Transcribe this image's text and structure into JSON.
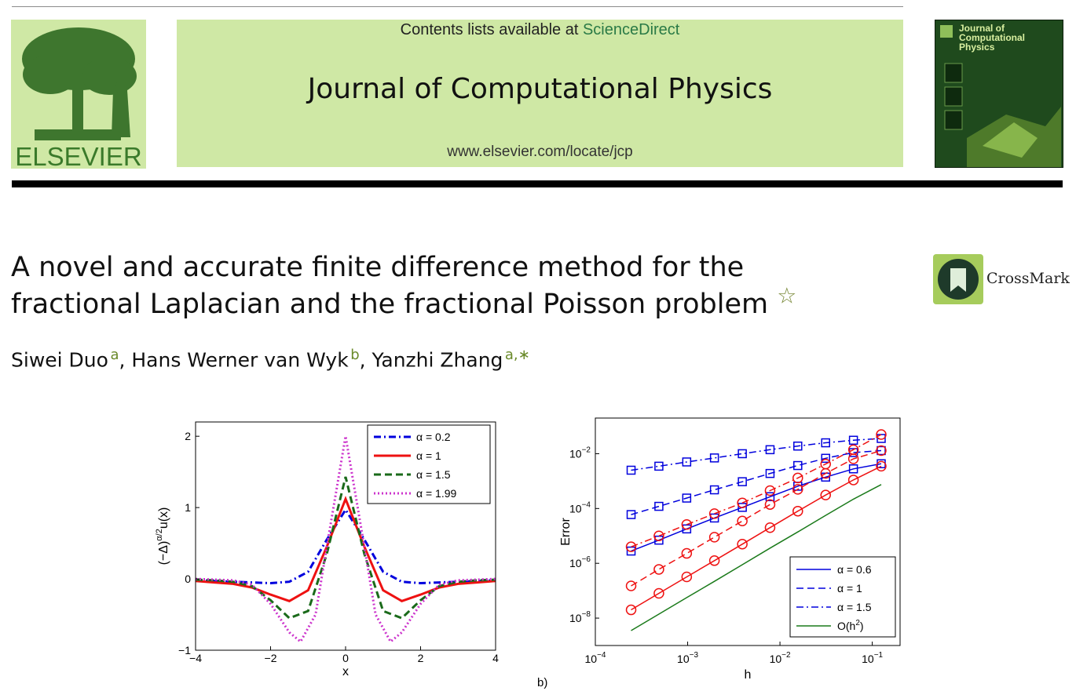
{
  "header": {
    "contents_prefix": "Contents lists available at ",
    "contents_link": "ScienceDirect",
    "journal_name": "Journal of Computational Physics",
    "journal_url": "www.elsevier.com/locate/jcp",
    "publisher_logo": "ELSEVIER",
    "cover_title": "Journal of Computational Physics",
    "colors": {
      "banner": "#cfe8a5",
      "link": "#2a7a46",
      "cover": "#1f4a1d"
    }
  },
  "article": {
    "title_line1": "A novel and accurate finite difference method for the",
    "title_line2": "fractional Laplacian and the fractional Poisson problem",
    "title_mark": "☆",
    "crossmark_label": "CrossMark",
    "authors": [
      {
        "name": "Siwei Duo",
        "aff": "a"
      },
      {
        "name": "Hans Werner van Wyk",
        "aff": "b"
      },
      {
        "name": "Yanzhi Zhang",
        "aff": "a,∗"
      }
    ]
  },
  "chart_data": [
    {
      "type": "line",
      "xlabel": "x",
      "ylabel": "(−Δ)^{α/2}u(x)",
      "xlim": [
        -4,
        4
      ],
      "ylim": [
        -1,
        2.2
      ],
      "xticks": [
        "−4",
        "−2",
        "0",
        "2",
        "4"
      ],
      "yticks": [
        "−1",
        "0",
        "1",
        "2"
      ],
      "legend_position": "top-right",
      "series": [
        {
          "name": "α = 0.2",
          "color": "#0000dd",
          "dash": "dashdot",
          "x": [
            -4,
            -3.5,
            -3,
            -2.5,
            -2,
            -1.5,
            -1,
            -0.5,
            0,
            0.5,
            1,
            1.5,
            2,
            2.5,
            3,
            3.5,
            4
          ],
          "y": [
            -0.02,
            -0.03,
            -0.04,
            -0.05,
            -0.06,
            -0.04,
            0.1,
            0.55,
            0.97,
            0.55,
            0.1,
            -0.04,
            -0.06,
            -0.05,
            -0.04,
            -0.03,
            -0.02
          ]
        },
        {
          "name": "α = 1",
          "color": "#ee1111",
          "dash": "solid",
          "x": [
            -4,
            -3.5,
            -3,
            -2.5,
            -2,
            -1.5,
            -1,
            -0.5,
            0,
            0.5,
            1,
            1.5,
            2,
            2.5,
            3,
            3.5,
            4
          ],
          "y": [
            -0.03,
            -0.05,
            -0.07,
            -0.12,
            -0.22,
            -0.31,
            -0.16,
            0.45,
            1.12,
            0.45,
            -0.16,
            -0.31,
            -0.22,
            -0.12,
            -0.07,
            -0.05,
            -0.03
          ]
        },
        {
          "name": "α = 1.5",
          "color": "#1a6a1a",
          "dash": "dashed",
          "x": [
            -4,
            -3.5,
            -3,
            -2.5,
            -2,
            -1.5,
            -1,
            -0.5,
            0,
            0.5,
            1,
            1.5,
            2,
            2.5,
            3,
            3.5,
            4
          ],
          "y": [
            -0.01,
            -0.02,
            -0.04,
            -0.1,
            -0.3,
            -0.55,
            -0.45,
            0.35,
            1.43,
            0.35,
            -0.45,
            -0.55,
            -0.3,
            -0.1,
            -0.04,
            -0.02,
            -0.01
          ]
        },
        {
          "name": "α = 1.99",
          "color": "#cc33cc",
          "dash": "dotted",
          "x": [
            -4,
            -3.5,
            -3,
            -2.5,
            -2,
            -1.5,
            -1.2,
            -0.8,
            -0.5,
            0,
            0.5,
            0.8,
            1.2,
            1.5,
            2,
            2.5,
            3,
            3.5,
            4
          ],
          "y": [
            0,
            -0.01,
            -0.02,
            -0.08,
            -0.35,
            -0.75,
            -0.88,
            -0.5,
            0.45,
            2.0,
            0.45,
            -0.5,
            -0.88,
            -0.75,
            -0.35,
            -0.08,
            -0.02,
            -0.01,
            0
          ]
        }
      ]
    },
    {
      "type": "line",
      "xlabel": "h",
      "ylabel": "Error",
      "xscale": "log",
      "yscale": "log",
      "xlim": [
        0.0001,
        0.2
      ],
      "ylim": [
        1e-09,
        0.2
      ],
      "xticks": [
        "10−4",
        "10−3",
        "10−2",
        "10−1"
      ],
      "yticks": [
        "10−8",
        "10−6",
        "10−4",
        "10−2"
      ],
      "legend_position": "bottom-right",
      "panel_label": "b)",
      "h": [
        0.000244,
        0.000488,
        0.000977,
        0.00195,
        0.00391,
        0.00781,
        0.0156,
        0.03125,
        0.0625,
        0.125
      ],
      "series": [
        {
          "name": "α = 0.6",
          "color": "#0000dd",
          "dash": "solid",
          "marker": "square",
          "y": [
            2.8e-06,
            7e-06,
            1.8e-05,
            4.5e-05,
            0.00011,
            0.00027,
            0.00065,
            0.0014,
            0.0028,
            0.0043
          ]
        },
        {
          "name": "α = 0.6",
          "color": "#ee1111",
          "dash": "solid",
          "marker": "circle",
          "y": [
            2e-08,
            8e-08,
            3.2e-07,
            1.25e-06,
            5e-06,
            2e-05,
            8e-05,
            0.00031,
            0.0011,
            0.0035
          ]
        },
        {
          "name": "α = 1",
          "color": "#0000dd",
          "dash": "dashed",
          "marker": "square",
          "y": [
            6e-05,
            0.00012,
            0.00024,
            0.00048,
            0.00095,
            0.0019,
            0.0037,
            0.0068,
            0.011,
            0.013
          ]
        },
        {
          "name": "α = 1",
          "color": "#ee1111",
          "dash": "dashed",
          "marker": "circle",
          "y": [
            1.5e-07,
            6e-07,
            2.3e-06,
            9e-06,
            3.5e-05,
            0.00014,
            0.0005,
            0.0019,
            0.0065,
            0.013
          ]
        },
        {
          "name": "α = 1.5",
          "color": "#0000dd",
          "dash": "dashdot",
          "marker": "square",
          "y": [
            0.0025,
            0.0035,
            0.005,
            0.007,
            0.01,
            0.014,
            0.019,
            0.025,
            0.031,
            0.036
          ]
        },
        {
          "name": "α = 1.5",
          "color": "#ee1111",
          "dash": "dashdot",
          "marker": "circle",
          "y": [
            4e-06,
            1e-05,
            2.6e-05,
            6.5e-05,
            0.00016,
            0.00045,
            0.0013,
            0.0042,
            0.014,
            0.05
          ]
        },
        {
          "name": "O(h2)",
          "color": "#1a7a1a",
          "dash": "solid",
          "marker": "none",
          "y": [
            3.5e-09,
            1.4e-08,
            5.6e-08,
            2.2e-07,
            8.9e-07,
            3.6e-06,
            1.4e-05,
            5.6e-05,
            0.00022,
            0.00075
          ]
        }
      ],
      "legend": [
        {
          "label": "α = 0.6",
          "color": "#0000dd",
          "dash": "solid"
        },
        {
          "label": "α = 1",
          "color": "#0000dd",
          "dash": "dashed"
        },
        {
          "label": "α = 1.5",
          "color": "#0000dd",
          "dash": "dashdot"
        },
        {
          "label": "O(h2)",
          "color": "#1a7a1a",
          "dash": "solid"
        }
      ]
    }
  ]
}
